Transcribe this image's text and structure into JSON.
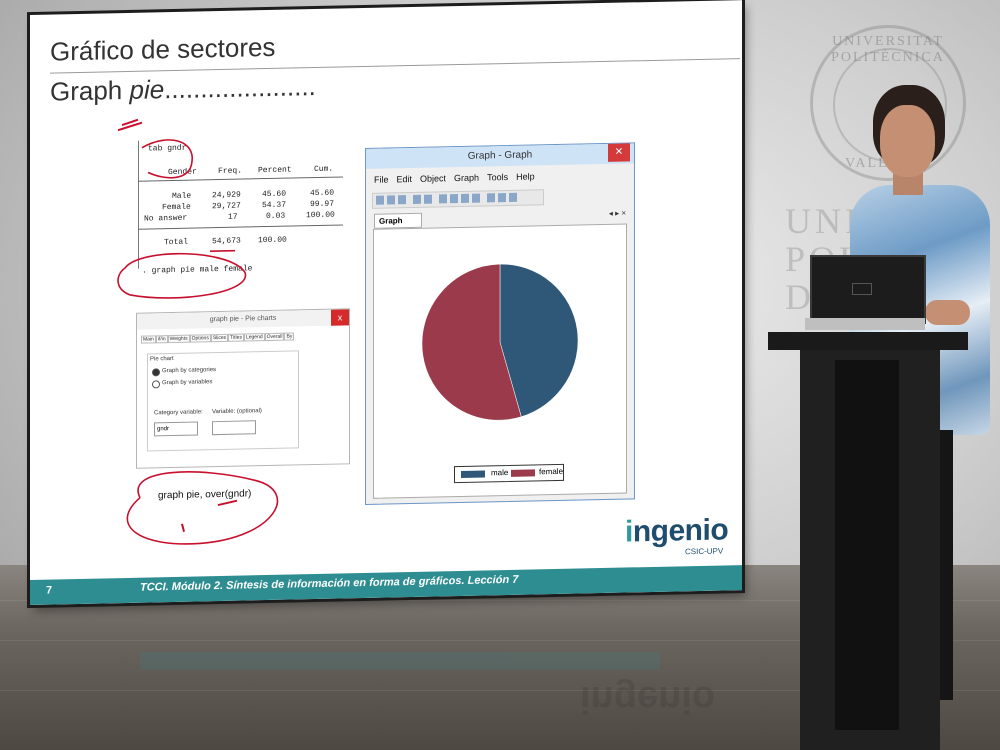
{
  "slide": {
    "title": "Gráfico de sectores",
    "subtitle_prefix": "Graph ",
    "subtitle_italic": "pie",
    "subtitle_suffix": ".....................",
    "footer_number": "7",
    "footer_text": "TCCI. Módulo 2. Síntesis de información en forma de gráficos. Lección 7",
    "logo_text_i": "i",
    "logo_text_rest": "ngenio",
    "logo_subtext": "CSIC-UPV"
  },
  "stata_output": {
    "command": "tab gndr",
    "headers": [
      "Gender",
      "Freq.",
      "Percent",
      "Cum."
    ],
    "rows": [
      [
        "Male",
        "24,929",
        "45.60",
        "45.60"
      ],
      [
        "Female",
        "29,727",
        "54.37",
        "99.97"
      ],
      [
        "No answer",
        "17",
        "0.03",
        "100.00"
      ]
    ],
    "total": [
      "Total",
      "54,673",
      "100.00"
    ],
    "command2": ". graph pie male female"
  },
  "dialog": {
    "title": "graph pie - Pie charts",
    "close": "x",
    "tabs": [
      "Main",
      "if/in",
      "Weights",
      "Options",
      "Slices",
      "Titles",
      "Legend",
      "Overall",
      "By"
    ],
    "group_label": "Pie chart",
    "radio1": "Graph by categories",
    "radio2": "Graph by variables",
    "category_label": "Category variable:",
    "category_value": "gndr",
    "variable_label": "Variable: (optional)"
  },
  "annotation": {
    "handwritten_command": "graph pie, over(gndr)"
  },
  "graph_window": {
    "title": "Graph - Graph",
    "close": "✕",
    "menu": [
      "File",
      "Edit",
      "Object",
      "Graph",
      "Tools",
      "Help"
    ],
    "tab": "Graph",
    "nav": "◂ ▸ ×"
  },
  "chart_data": {
    "type": "pie",
    "categories": [
      "male",
      "female"
    ],
    "values": [
      45.6,
      54.4
    ],
    "colors": [
      "#2f5878",
      "#9b3a4b"
    ],
    "legend_position": "bottom"
  },
  "background": {
    "seal_text_top": "UNIVERSITAT POLITÈCNICA",
    "seal_text_bottom": "VALÈNCIA",
    "univ_line1": "UNIV",
    "univ_line2": "POLI",
    "univ_line3": "DE"
  },
  "colors": {
    "teal": "#2e8d91",
    "annotation_red": "#c8102e"
  }
}
